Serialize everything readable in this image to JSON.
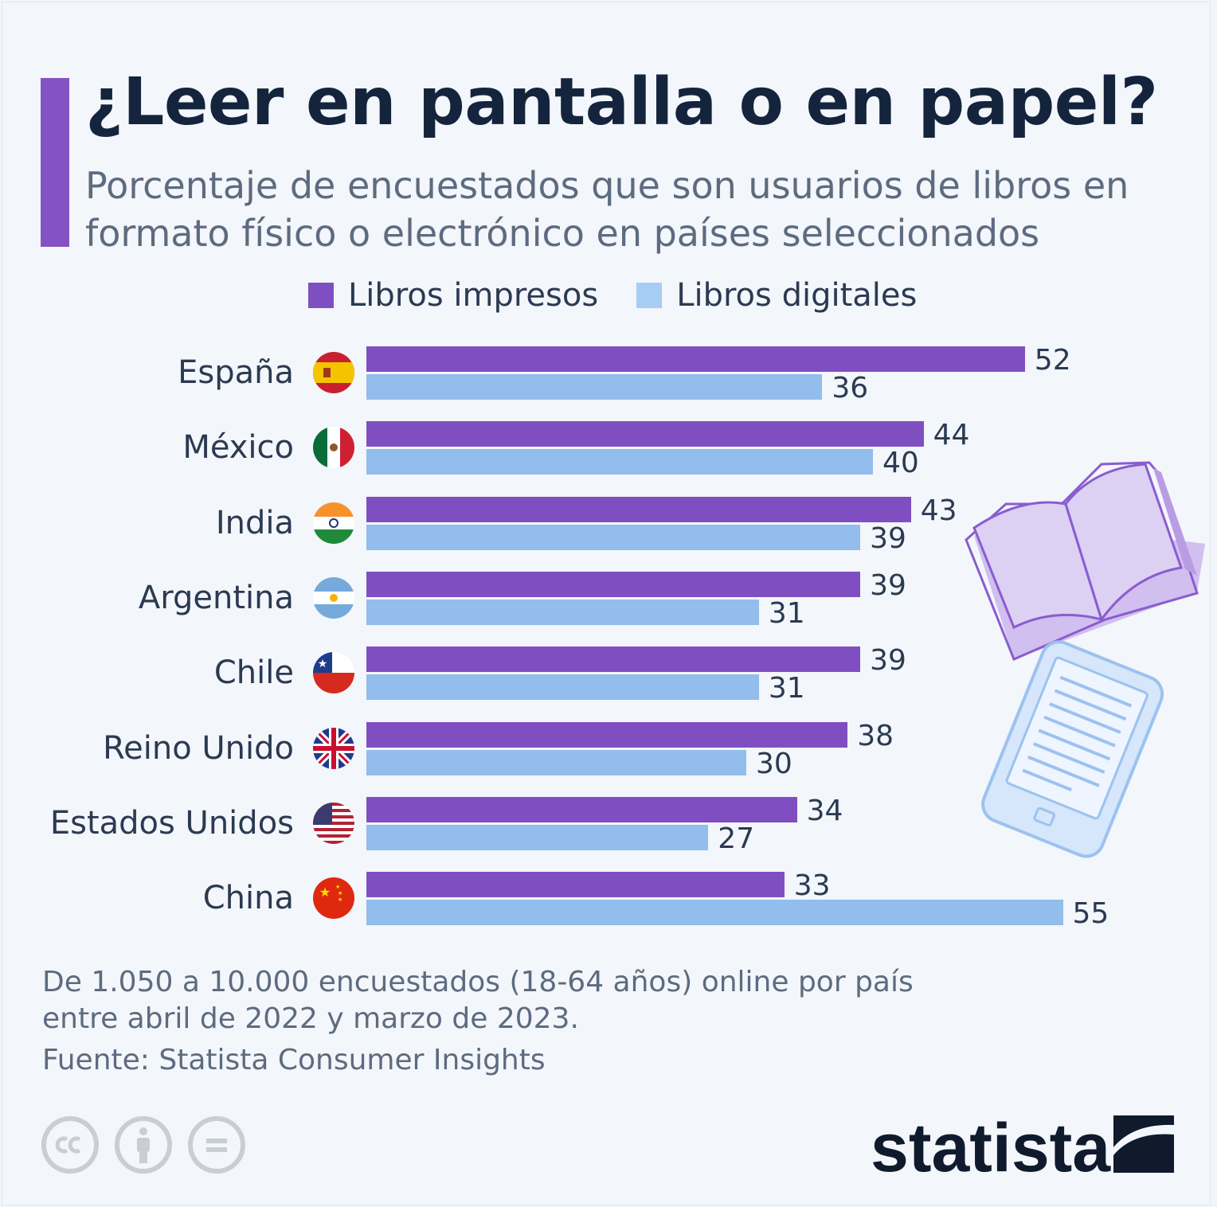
{
  "title": "¿Leer en pantalla o en papel?",
  "subtitle": "Porcentaje de encuestados que son usuarios de libros en formato físico o electrónico en países seleccionados",
  "legend": [
    {
      "label": "Libros impresos",
      "color": "#7f4fc1"
    },
    {
      "label": "Libros digitales",
      "color": "#92bdec"
    }
  ],
  "chart_data": {
    "type": "bar",
    "orientation": "horizontal",
    "categories": [
      "España",
      "México",
      "India",
      "Argentina",
      "Chile",
      "Reino Unido",
      "Estados Unidos",
      "China"
    ],
    "series": [
      {
        "name": "Libros impresos",
        "values": [
          52,
          44,
          43,
          39,
          39,
          38,
          34,
          33
        ],
        "color": "#7f4fc1"
      },
      {
        "name": "Libros digitales",
        "values": [
          36,
          40,
          39,
          31,
          31,
          30,
          27,
          55
        ],
        "color": "#92bdec"
      }
    ],
    "xlim": [
      0,
      55
    ],
    "grid": false,
    "legend_position": "top"
  },
  "flags": [
    "spain-flag-icon",
    "mexico-flag-icon",
    "india-flag-icon",
    "argentina-flag-icon",
    "chile-flag-icon",
    "uk-flag-icon",
    "usa-flag-icon",
    "china-flag-icon"
  ],
  "footer": {
    "note": "De 1.050 a 10.000 encuestados (18-64 años) online por país entre abril de 2022 y marzo de 2023.",
    "source": "Fuente: Statista Consumer Insights",
    "license_icons": [
      "creative-commons-icon",
      "attribution-icon",
      "no-derivatives-icon"
    ]
  },
  "brand": {
    "name": "statista"
  }
}
